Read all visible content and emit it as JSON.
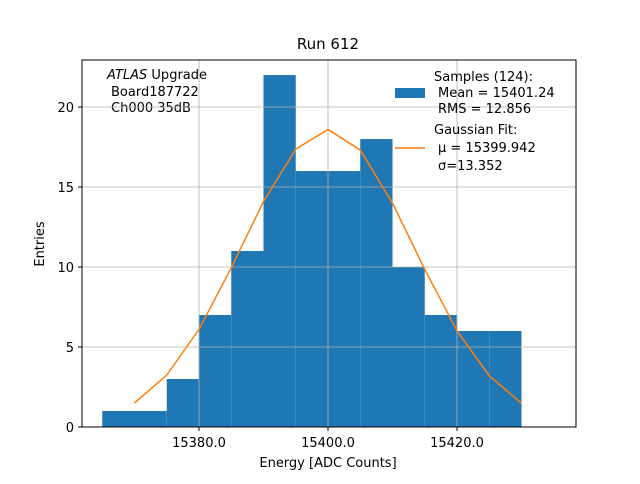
{
  "chart_data": {
    "type": "histogram",
    "title": "Run 612",
    "xlabel": "Energy [ADC Counts]",
    "ylabel": "Entries",
    "annotation": [
      "ATLAS",
      "Upgrade",
      "Board187722",
      "Ch000 35dB"
    ],
    "bins": [
      15365,
      15370,
      15375,
      15380,
      15385,
      15390,
      15395,
      15400,
      15405,
      15410,
      15415,
      15420,
      15425,
      15430
    ],
    "series": [
      {
        "name": "Samples (124):",
        "details": [
          "Mean = 15401.24",
          "RMS = 12.856"
        ],
        "color": "#1f77b4",
        "values": [
          1,
          1,
          3,
          7,
          11,
          22,
          16,
          16,
          18,
          10,
          7,
          6,
          6
        ]
      },
      {
        "name": "Gaussian Fit:",
        "details": [
          "μ = 15399.942",
          "σ=13.352"
        ],
        "color": "#ff7f0e",
        "x": [
          15370,
          15375,
          15380,
          15385,
          15390,
          15395,
          15400,
          15405,
          15410,
          15415,
          15420,
          15425,
          15430
        ],
        "values": [
          1.5,
          3.25,
          6.1,
          9.95,
          14.1,
          17.37,
          18.6,
          17.31,
          14.0,
          9.85,
          6.02,
          3.2,
          1.48
        ]
      }
    ],
    "xlim": [
      15361.86,
      15438.45
    ],
    "ylim": [
      0,
      22.94
    ],
    "xticks": [
      {
        "value": 15380,
        "label": "15380.0"
      },
      {
        "value": 15400,
        "label": "15400.0"
      },
      {
        "value": 15420,
        "label": "15420.0"
      }
    ],
    "yticks": [
      0,
      5,
      10,
      15,
      20
    ],
    "grid": true,
    "legend": "upper right"
  }
}
